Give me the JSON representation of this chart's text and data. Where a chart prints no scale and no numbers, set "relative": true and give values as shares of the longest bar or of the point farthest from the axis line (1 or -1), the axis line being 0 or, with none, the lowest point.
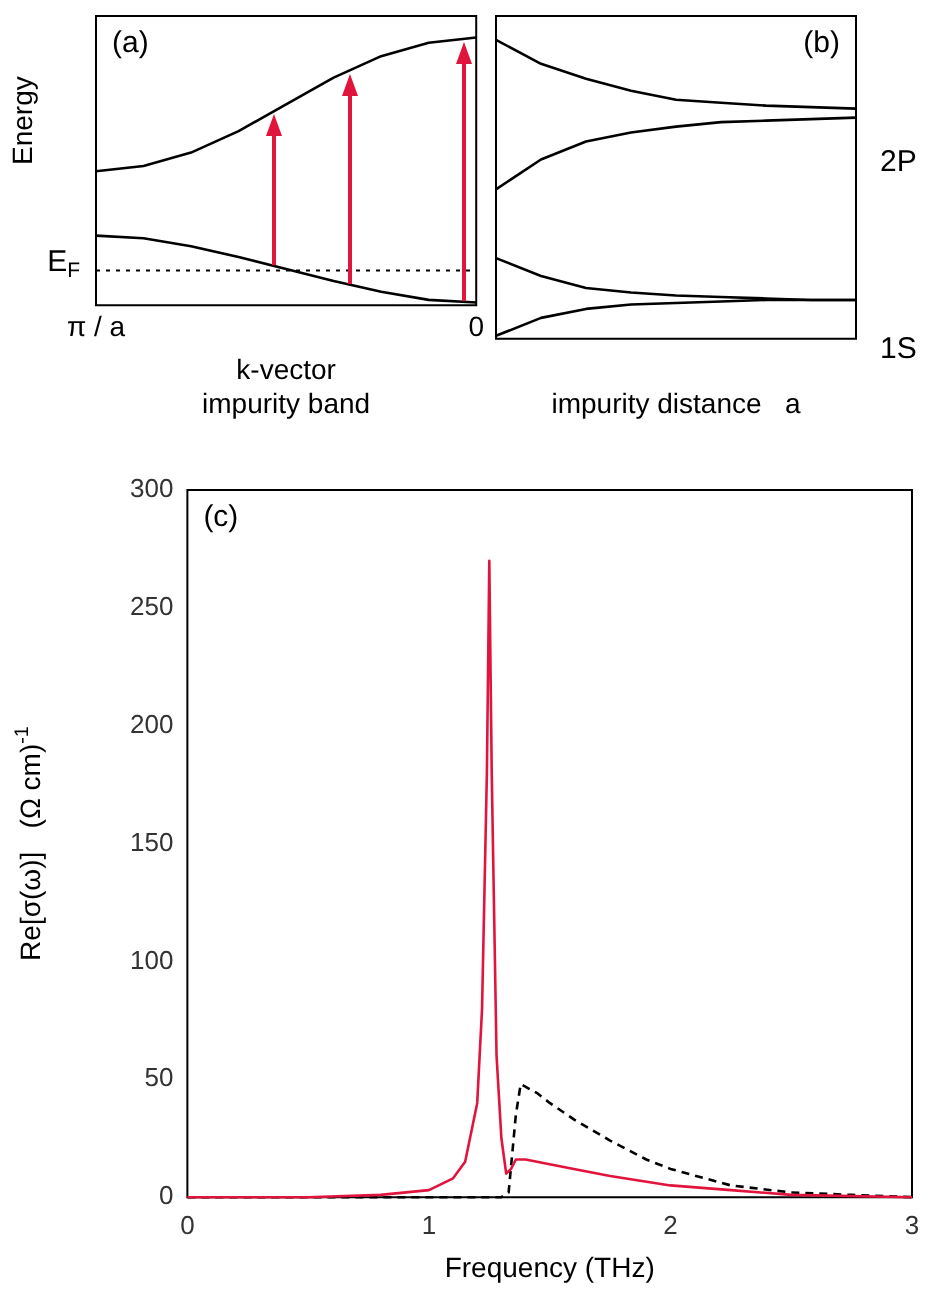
{
  "chart_data": [
    {
      "type": "line",
      "relative": true,
      "categories": [
        "π / a",
        null,
        null,
        null,
        null,
        null,
        null,
        null,
        "0"
      ],
      "ylabel": "Energy",
      "xlabel": "k-vector\nimpurity band",
      "annotations": [
        "(a)"
      ],
      "legend": false,
      "grid": false,
      "marker": "none",
      "series": [
        {
          "color": "#000000",
          "values": [
            0.5,
            0.52,
            0.57,
            0.65,
            0.75,
            0.85,
            0.93,
            0.98,
            1.0
          ]
        },
        {
          "color": "#000000",
          "values": [
            0.26,
            0.25,
            0.22,
            0.18,
            0.135,
            0.09,
            0.05,
            0.02,
            0.01
          ]
        }
      ],
      "ref_lines": [
        {
          "axis": "y",
          "value": 0.13,
          "label": "E$_{F}$",
          "line_style": "dotted"
        }
      ]
    },
    {
      "type": "line",
      "relative": true,
      "categories": [
        null,
        null,
        null,
        null,
        null,
        null,
        null,
        null,
        null
      ],
      "xlabel": "impurity distance   a",
      "annotations": [
        "(b)",
        "2P",
        "1S"
      ],
      "legend": false,
      "grid": false,
      "marker": "none",
      "series": [
        {
          "color": "#000000",
          "values": [
            1.0,
            0.92,
            0.87,
            0.83,
            0.8,
            0.79,
            0.78,
            0.775,
            0.77
          ]
        },
        {
          "color": "#000000",
          "values": [
            0.5,
            0.6,
            0.66,
            0.69,
            0.71,
            0.725,
            0.73,
            0.735,
            0.74
          ]
        },
        {
          "color": "#000000",
          "values": [
            0.27,
            0.21,
            0.17,
            0.155,
            0.145,
            0.14,
            0.135,
            0.13,
            0.13
          ]
        },
        {
          "color": "#000000",
          "values": [
            0.01,
            0.07,
            0.1,
            0.115,
            0.12,
            0.125,
            0.13,
            0.13,
            0.13
          ]
        }
      ]
    },
    {
      "type": "line",
      "xlabel": "Frequency (THz)",
      "ylabel": "Re[σ(ω)]   (Ω cm)$^{-1}$",
      "annotations": [
        "(c)"
      ],
      "legend": false,
      "grid": false,
      "marker": "none",
      "xlim": [
        0,
        3
      ],
      "xticks": [
        0,
        1,
        2,
        3
      ],
      "ylim": [
        0,
        300
      ],
      "yticks": [
        0,
        50,
        100,
        150,
        200,
        250,
        300
      ],
      "series": [
        {
          "color": "#e0143c",
          "line_style": "solid",
          "x": [
            0,
            0.5,
            0.8,
            1.0,
            1.1,
            1.15,
            1.2,
            1.22,
            1.24,
            1.25,
            1.26,
            1.28,
            1.3,
            1.32,
            1.34,
            1.36,
            1.4,
            1.5,
            1.6,
            1.75,
            2.0,
            2.25,
            2.5,
            3.0
          ],
          "values": [
            0,
            0,
            1,
            3,
            8,
            15,
            40,
            80,
            180,
            270,
            180,
            60,
            25,
            10,
            12,
            16,
            16,
            14,
            12,
            9,
            5,
            3,
            1,
            0
          ]
        },
        {
          "color": "#000000",
          "line_style": "dashed",
          "x": [
            0,
            1.0,
            1.3,
            1.33,
            1.36,
            1.38,
            1.45,
            1.5,
            1.6,
            1.75,
            1.9,
            2.0,
            2.25,
            2.5,
            2.75,
            3.0
          ],
          "values": [
            0,
            0,
            0,
            2,
            35,
            48,
            44,
            40,
            33,
            24,
            16,
            12,
            5,
            2,
            1,
            0
          ]
        }
      ]
    }
  ]
}
